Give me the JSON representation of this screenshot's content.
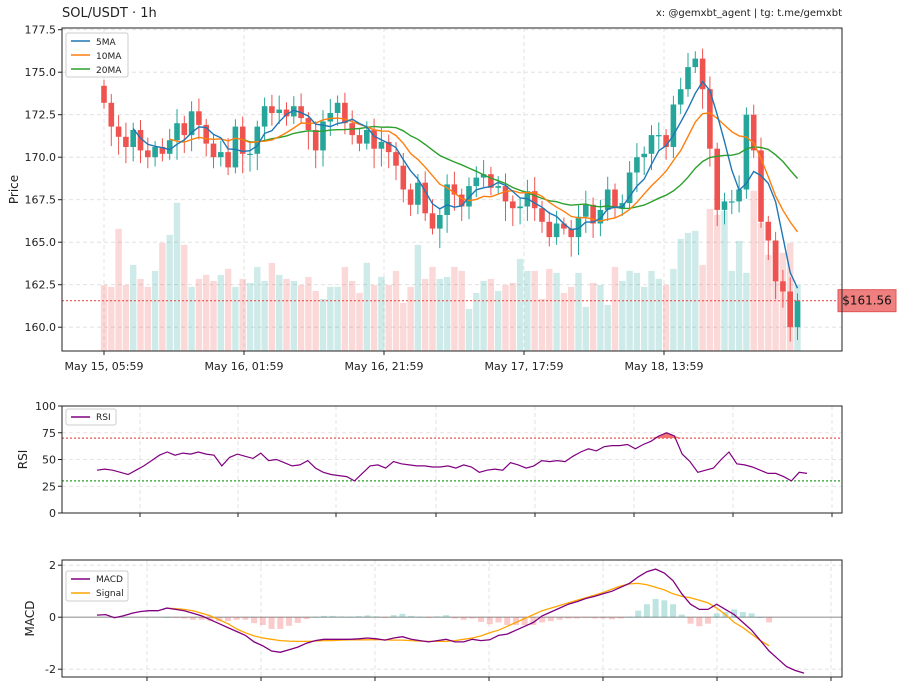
{
  "header": {
    "title": "SOL/USDT · 1h",
    "credit": "x: @gemxbt_agent | tg: t.me/gemxbt"
  },
  "colors": {
    "up": "#26a69a",
    "down": "#ef5350",
    "ma5": "#1f77b4",
    "ma10": "#ff7f0e",
    "ma20": "#2ca02c",
    "rsi": "#800080",
    "macd": "#800080",
    "signal": "#ffa500",
    "price_line": "#ef5350",
    "grid": "#dddddd"
  },
  "chart_data": [
    {
      "type": "candlestick",
      "ylabel": "Price",
      "ylim": [
        158.6,
        177.6
      ],
      "yticks": [
        160.0,
        162.5,
        165.0,
        167.5,
        170.0,
        172.5,
        175.0,
        177.5
      ],
      "xtick_labels": [
        "May 15, 05:59",
        "May 16, 01:59",
        "May 16, 21:59",
        "May 17, 17:59",
        "May 18, 13:59"
      ],
      "legend": [
        "5MA",
        "10MA",
        "20MA"
      ],
      "legend_position": "top-left",
      "last_price": "$161.56",
      "grid": true,
      "close": [
        173.2,
        171.8,
        171.2,
        170.6,
        171.6,
        170.4,
        170.0,
        170.6,
        170.2,
        171.0,
        172.0,
        171.3,
        172.7,
        171.9,
        170.8,
        170.0,
        170.3,
        169.4,
        171.8,
        170.2,
        170.2,
        171.8,
        173.0,
        172.6,
        172.8,
        172.4,
        173.0,
        172.3,
        171.6,
        170.4,
        172.1,
        172.6,
        173.2,
        172.0,
        171.3,
        170.8,
        171.6,
        170.5,
        170.9,
        170.3,
        169.5,
        168.1,
        167.2,
        168.5,
        166.7,
        165.8,
        166.6,
        168.4,
        167.8,
        167.1,
        168.3,
        168.8,
        169.0,
        168.2,
        168.3,
        167.4,
        167.0,
        167.1,
        168.0,
        167.0,
        166.2,
        165.3,
        166.1,
        165.8,
        165.3,
        166.5,
        167.2,
        166.1,
        166.9,
        168.1,
        167.0,
        167.3,
        169.1,
        170.0,
        170.2,
        171.3,
        171.3,
        170.6,
        173.1,
        174.0,
        175.3,
        175.8,
        174.0,
        170.5,
        166.9,
        167.4,
        167.4,
        168.1,
        172.5,
        170.4,
        166.2,
        165.1,
        162.7,
        162.1,
        160.0,
        161.56
      ],
      "volume": [
        0.33,
        0.32,
        0.61,
        0.33,
        0.43,
        0.36,
        0.32,
        0.4,
        0.54,
        0.58,
        0.74,
        0.53,
        0.32,
        0.36,
        0.38,
        0.35,
        0.38,
        0.41,
        0.32,
        0.36,
        0.34,
        0.42,
        0.35,
        0.44,
        0.38,
        0.36,
        0.35,
        0.33,
        0.37,
        0.3,
        0.26,
        0.32,
        0.32,
        0.42,
        0.35,
        0.29,
        0.44,
        0.33,
        0.37,
        0.33,
        0.4,
        0.24,
        0.32,
        0.53,
        0.36,
        0.42,
        0.36,
        0.37,
        0.42,
        0.4,
        0.21,
        0.29,
        0.35,
        0.36,
        0.3,
        0.33,
        0.34,
        0.46,
        0.4,
        0.4,
        0.26,
        0.41,
        0.39,
        0.29,
        0.32,
        0.39,
        0.22,
        0.34,
        0.33,
        0.23,
        0.42,
        0.35,
        0.4,
        0.39,
        0.32,
        0.4,
        0.36,
        0.33,
        0.41,
        0.56,
        0.59,
        0.6,
        0.43,
        0.71,
        0.68,
        0.7,
        0.4,
        0.55,
        0.39,
        0.8,
        0.64,
        0.48,
        0.55,
        0.49,
        0.54,
        0.33
      ]
    },
    {
      "type": "line",
      "ylabel": "RSI",
      "ylim": [
        0,
        100
      ],
      "yticks": [
        0,
        25,
        50,
        75,
        100
      ],
      "legend": [
        "RSI"
      ],
      "legend_position": "top-left",
      "guide_levels": [
        70,
        30
      ],
      "rsi": [
        40,
        41,
        40,
        38,
        36,
        40,
        44,
        49,
        54,
        57,
        54,
        56,
        55,
        57,
        55,
        54,
        44,
        52,
        55,
        53,
        51,
        56,
        49,
        50,
        47,
        44,
        45,
        49,
        42,
        38,
        36,
        35,
        34,
        30,
        37,
        44,
        45,
        42,
        48,
        46,
        45,
        44,
        44,
        43,
        43,
        44,
        42,
        45,
        43,
        38,
        40,
        41,
        40,
        47,
        45,
        42,
        44,
        49,
        48,
        49,
        48,
        53,
        57,
        60,
        58,
        62,
        63,
        63,
        64,
        60,
        64,
        67,
        72,
        75,
        72,
        55,
        48,
        38,
        40,
        42,
        50,
        57,
        46,
        45,
        43,
        40,
        37,
        37,
        34,
        30,
        38,
        37
      ]
    },
    {
      "type": "line_bar",
      "ylabel": "MACD",
      "ylim": [
        -2.3,
        2.2
      ],
      "yticks": [
        -2,
        0,
        2
      ],
      "legend": [
        "MACD",
        "Signal"
      ],
      "legend_position": "top-left",
      "macd": [
        0.08,
        0.1,
        -0.02,
        0.05,
        0.15,
        0.22,
        0.25,
        0.25,
        0.35,
        0.3,
        0.25,
        0.15,
        0.05,
        -0.1,
        -0.25,
        -0.4,
        -0.55,
        -0.7,
        -0.95,
        -1.1,
        -1.3,
        -1.35,
        -1.25,
        -1.15,
        -1.0,
        -0.9,
        -0.85,
        -0.85,
        -0.85,
        -0.85,
        -0.83,
        -0.8,
        -0.83,
        -0.88,
        -0.8,
        -0.75,
        -0.85,
        -0.9,
        -0.95,
        -0.9,
        -0.85,
        -0.95,
        -0.95,
        -0.85,
        -0.9,
        -0.87,
        -0.7,
        -0.65,
        -0.5,
        -0.35,
        -0.2,
        0.05,
        0.2,
        0.35,
        0.5,
        0.6,
        0.72,
        0.8,
        0.9,
        1.0,
        1.15,
        1.3,
        1.55,
        1.75,
        1.85,
        1.7,
        1.4,
        0.9,
        0.5,
        0.3,
        0.3,
        0.5,
        0.3,
        0.1,
        -0.2,
        -0.5,
        -0.9,
        -1.3,
        -1.6,
        -1.9,
        -2.05,
        -2.15
      ],
      "signal": [
        null,
        null,
        null,
        null,
        null,
        null,
        null,
        null,
        0.35,
        0.33,
        0.3,
        0.25,
        0.15,
        0.05,
        -0.1,
        -0.25,
        -0.45,
        -0.6,
        -0.72,
        -0.8,
        -0.85,
        -0.9,
        -0.92,
        -0.93,
        -0.93,
        -0.92,
        -0.9,
        -0.9,
        -0.88,
        -0.87,
        -0.87,
        -0.87,
        -0.86,
        -0.87,
        -0.88,
        -0.88,
        -0.9,
        -0.92,
        -0.93,
        -0.93,
        -0.93,
        -0.9,
        -0.85,
        -0.8,
        -0.72,
        -0.6,
        -0.5,
        -0.35,
        -0.2,
        -0.05,
        0.1,
        0.25,
        0.35,
        0.45,
        0.55,
        0.65,
        0.75,
        0.85,
        0.95,
        1.08,
        1.2,
        1.28,
        1.3,
        1.25,
        1.15,
        1.05,
        0.9,
        0.8,
        0.75,
        0.65,
        0.55,
        0.35,
        0.1,
        -0.2,
        -0.4,
        -0.65,
        -0.9,
        -1.1
      ]
    }
  ]
}
